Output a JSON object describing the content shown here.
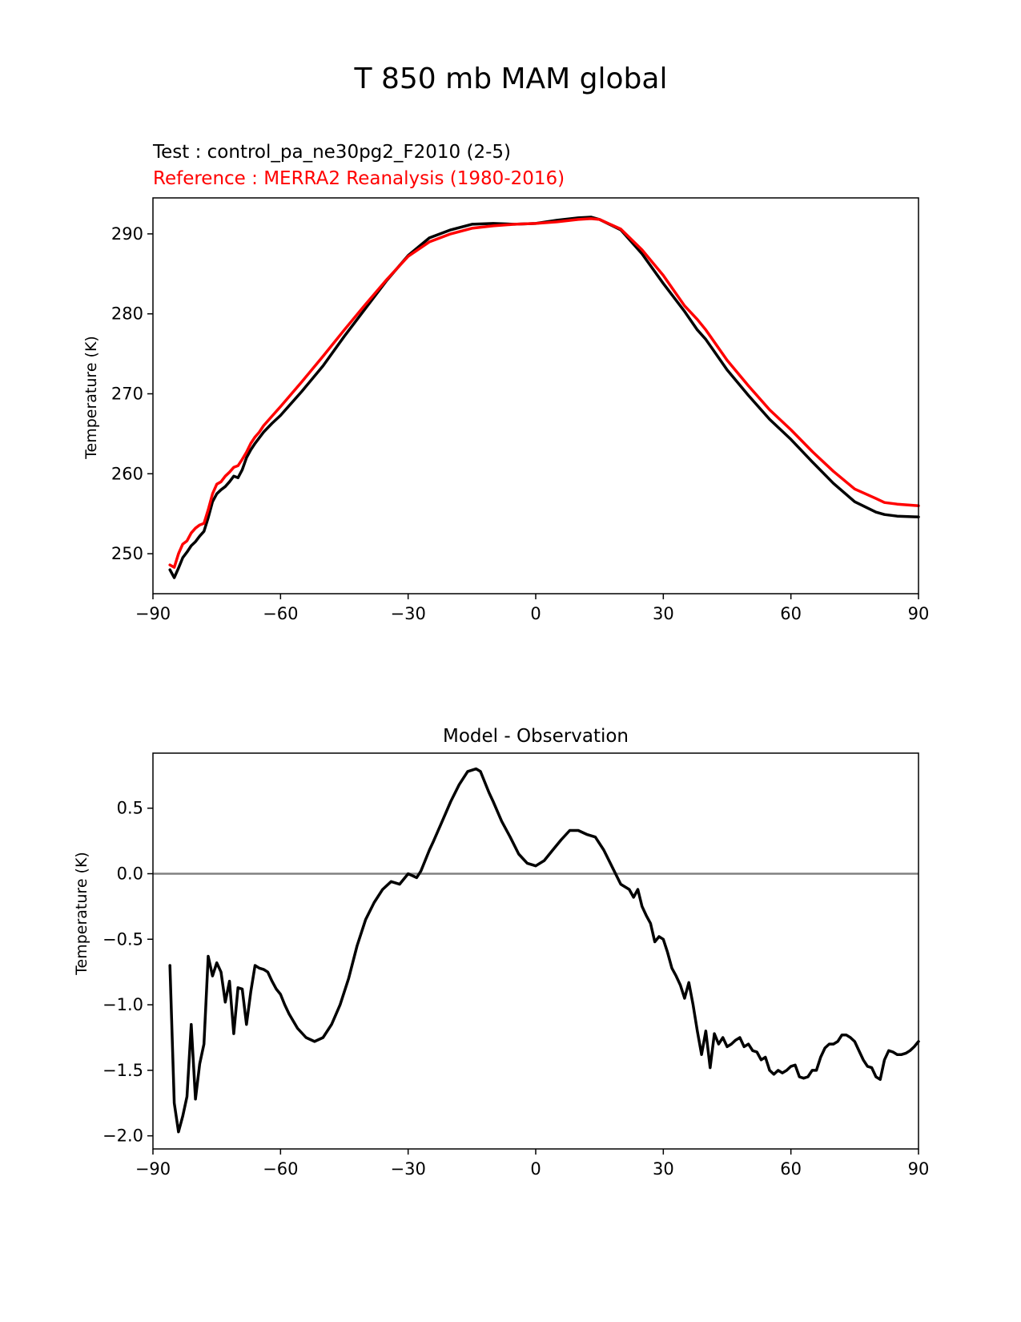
{
  "title": "T 850 mb MAM global",
  "chart_data": [
    {
      "type": "line",
      "test_label": "Test : control_pa_ne30pg2_F2010 (2-5)",
      "reference_label": "Reference : MERRA2 Reanalysis (1980-2016)",
      "xlabel": "",
      "ylabel": "Temperature (K)",
      "xlim": [
        -90,
        90
      ],
      "ylim": [
        245,
        294.5
      ],
      "xticks": [
        -90,
        -60,
        -30,
        0,
        30,
        60,
        90
      ],
      "xtick_labels": [
        "−90",
        "−60",
        "−30",
        "0",
        "30",
        "60",
        "90"
      ],
      "yticks": [
        250,
        260,
        270,
        280,
        290
      ],
      "ytick_labels": [
        "250",
        "260",
        "270",
        "280",
        "290"
      ],
      "colors": {
        "test": "#000000",
        "reference": "#ff0000"
      },
      "series": [
        {
          "name": "Test",
          "x": [
            -86,
            -85,
            -84,
            -83,
            -82,
            -81,
            -80,
            -79,
            -78,
            -77,
            -76,
            -75,
            -74,
            -73,
            -72,
            -71,
            -70,
            -69,
            -68,
            -67,
            -66,
            -65,
            -64,
            -62,
            -60,
            -55,
            -50,
            -45,
            -40,
            -35,
            -30,
            -25,
            -20,
            -15,
            -10,
            -5,
            0,
            5,
            10,
            13,
            15,
            20,
            25,
            30,
            35,
            38,
            40,
            45,
            50,
            55,
            60,
            65,
            70,
            75,
            80,
            82,
            85,
            90
          ],
          "y": [
            248.0,
            247.0,
            248.2,
            249.5,
            250.2,
            251.0,
            251.5,
            252.2,
            252.8,
            254.5,
            256.5,
            257.5,
            258.0,
            258.4,
            259.0,
            259.7,
            259.5,
            260.5,
            262.0,
            263.0,
            263.8,
            264.5,
            265.2,
            266.3,
            267.3,
            270.3,
            273.5,
            277.2,
            280.7,
            284.2,
            287.3,
            289.5,
            290.5,
            291.2,
            291.3,
            291.2,
            291.3,
            291.7,
            292.0,
            292.1,
            291.8,
            290.5,
            287.5,
            283.8,
            280.3,
            278.0,
            276.8,
            273.0,
            269.8,
            266.8,
            264.3,
            261.5,
            258.8,
            256.5,
            255.2,
            254.9,
            254.7,
            254.6
          ]
        },
        {
          "name": "Reference",
          "x": [
            -86,
            -85,
            -84,
            -83,
            -82,
            -81,
            -80,
            -79,
            -78,
            -77,
            -76,
            -75,
            -74,
            -73,
            -72,
            -71,
            -70,
            -69,
            -68,
            -67,
            -66,
            -65,
            -64,
            -62,
            -60,
            -55,
            -50,
            -45,
            -40,
            -35,
            -30,
            -25,
            -20,
            -15,
            -10,
            -5,
            0,
            5,
            10,
            13,
            15,
            20,
            25,
            30,
            35,
            38,
            40,
            45,
            50,
            55,
            60,
            65,
            70,
            75,
            80,
            82,
            85,
            90
          ],
          "y": [
            248.6,
            248.3,
            250.0,
            251.2,
            251.6,
            252.6,
            253.2,
            253.6,
            253.8,
            255.5,
            257.5,
            258.7,
            259.0,
            259.7,
            260.2,
            260.8,
            261.0,
            261.8,
            262.7,
            263.8,
            264.6,
            265.2,
            266.0,
            267.2,
            268.4,
            271.5,
            274.7,
            278.0,
            281.2,
            284.3,
            287.2,
            289.0,
            290.0,
            290.7,
            291.0,
            291.2,
            291.3,
            291.5,
            291.8,
            291.9,
            291.8,
            290.6,
            288.0,
            284.8,
            281.0,
            279.3,
            278.0,
            274.2,
            271.0,
            268.0,
            265.5,
            262.8,
            260.3,
            258.1,
            256.9,
            256.4,
            256.2,
            256.0
          ]
        }
      ]
    },
    {
      "type": "line",
      "title": "Model - Observation",
      "xlabel": "",
      "ylabel": "Temperature (K)",
      "xlim": [
        -90,
        90
      ],
      "ylim": [
        -2.1,
        0.92
      ],
      "xticks": [
        -90,
        -60,
        -30,
        0,
        30,
        60,
        90
      ],
      "xtick_labels": [
        "−90",
        "−60",
        "−30",
        "0",
        "30",
        "60",
        "90"
      ],
      "yticks": [
        -2.0,
        -1.5,
        -1.0,
        -0.5,
        0.0,
        0.5
      ],
      "ytick_labels": [
        "−2.0",
        "−1.5",
        "−1.0",
        "−0.5",
        "0.0",
        "0.5"
      ],
      "zero_line_color": "#808080",
      "colors": {
        "diff": "#000000"
      },
      "series": [
        {
          "name": "Model - Observation",
          "x": [
            -86,
            -85,
            -84,
            -83,
            -82,
            -81,
            -80,
            -79,
            -78,
            -77,
            -76,
            -75,
            -74,
            -73,
            -72,
            -71,
            -70,
            -69,
            -68,
            -67,
            -66,
            -65,
            -64,
            -63,
            -62,
            -61,
            -60,
            -59,
            -58,
            -56,
            -54,
            -52,
            -50,
            -48,
            -46,
            -44,
            -42,
            -40,
            -38,
            -36,
            -34,
            -32,
            -30,
            -28,
            -27,
            -26,
            -25,
            -24,
            -22,
            -20,
            -18,
            -16,
            -14,
            -13,
            -12,
            -11,
            -10,
            -8,
            -6,
            -4,
            -2,
            0,
            2,
            4,
            6,
            8,
            10,
            12,
            14,
            16,
            18,
            20,
            22,
            23,
            24,
            25,
            26,
            27,
            28,
            29,
            30,
            31,
            32,
            33,
            34,
            35,
            36,
            37,
            38,
            39,
            40,
            41,
            42,
            43,
            44,
            45,
            46,
            47,
            48,
            49,
            50,
            51,
            52,
            53,
            54,
            55,
            56,
            57,
            58,
            59,
            60,
            61,
            62,
            63,
            64,
            65,
            66,
            67,
            68,
            69,
            70,
            71,
            72,
            73,
            74,
            75,
            76,
            77,
            78,
            79,
            80,
            81,
            82,
            83,
            84,
            85,
            86,
            87,
            88,
            89,
            90
          ],
          "y": [
            -0.7,
            -1.75,
            -1.97,
            -1.85,
            -1.7,
            -1.15,
            -1.72,
            -1.45,
            -1.3,
            -0.63,
            -0.78,
            -0.68,
            -0.75,
            -0.98,
            -0.82,
            -1.22,
            -0.87,
            -0.88,
            -1.15,
            -0.9,
            -0.7,
            -0.72,
            -0.73,
            -0.75,
            -0.82,
            -0.88,
            -0.92,
            -1.0,
            -1.07,
            -1.18,
            -1.25,
            -1.28,
            -1.25,
            -1.15,
            -1.0,
            -0.8,
            -0.55,
            -0.35,
            -0.22,
            -0.12,
            -0.06,
            -0.08,
            0.0,
            -0.03,
            0.02,
            0.1,
            0.18,
            0.25,
            0.4,
            0.55,
            0.68,
            0.78,
            0.8,
            0.78,
            0.7,
            0.62,
            0.55,
            0.4,
            0.28,
            0.15,
            0.08,
            0.06,
            0.1,
            0.18,
            0.26,
            0.33,
            0.33,
            0.3,
            0.28,
            0.18,
            0.05,
            -0.08,
            -0.12,
            -0.18,
            -0.12,
            -0.25,
            -0.32,
            -0.38,
            -0.52,
            -0.48,
            -0.5,
            -0.6,
            -0.72,
            -0.78,
            -0.85,
            -0.95,
            -0.83,
            -1.0,
            -1.2,
            -1.38,
            -1.2,
            -1.48,
            -1.22,
            -1.3,
            -1.25,
            -1.32,
            -1.3,
            -1.27,
            -1.25,
            -1.32,
            -1.3,
            -1.35,
            -1.36,
            -1.42,
            -1.4,
            -1.5,
            -1.53,
            -1.5,
            -1.52,
            -1.5,
            -1.47,
            -1.46,
            -1.55,
            -1.56,
            -1.55,
            -1.5,
            -1.5,
            -1.4,
            -1.33,
            -1.3,
            -1.3,
            -1.28,
            -1.23,
            -1.23,
            -1.25,
            -1.28,
            -1.35,
            -1.42,
            -1.47,
            -1.48,
            -1.55,
            -1.57,
            -1.42,
            -1.35,
            -1.36,
            -1.38,
            -1.38,
            -1.37,
            -1.35,
            -1.32,
            -1.28
          ]
        }
      ]
    }
  ]
}
